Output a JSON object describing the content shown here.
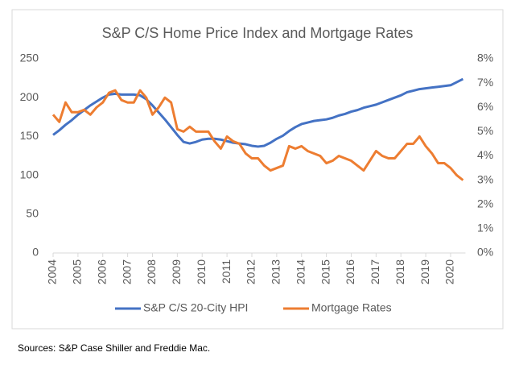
{
  "chart_data": {
    "type": "line",
    "title": "S&P C/S Home Price Index and Mortgage Rates",
    "x": [
      2004,
      2004.25,
      2004.5,
      2004.75,
      2005,
      2005.25,
      2005.5,
      2005.75,
      2006,
      2006.25,
      2006.5,
      2006.75,
      2007,
      2007.25,
      2007.5,
      2007.75,
      2008,
      2008.25,
      2008.5,
      2008.75,
      2009,
      2009.25,
      2009.5,
      2009.75,
      2010,
      2010.25,
      2010.5,
      2010.75,
      2011,
      2011.25,
      2011.5,
      2011.75,
      2012,
      2012.25,
      2012.5,
      2012.75,
      2013,
      2013.25,
      2013.5,
      2013.75,
      2014,
      2014.25,
      2014.5,
      2014.75,
      2015,
      2015.25,
      2015.5,
      2015.75,
      2016,
      2016.25,
      2016.5,
      2016.75,
      2017,
      2017.25,
      2017.5,
      2017.75,
      2018,
      2018.25,
      2018.5,
      2018.75,
      2019,
      2019.25,
      2019.5,
      2019.75,
      2020,
      2020.25,
      2020.5
    ],
    "series": [
      {
        "name": "S&P C/S 20-City HPI",
        "color": "#4472c4",
        "axis": "y",
        "values": [
          152,
          158,
          165,
          171,
          178,
          184,
          190,
          195,
          200,
          204,
          205,
          204,
          204,
          204,
          203,
          198,
          190,
          181,
          172,
          162,
          152,
          143,
          141,
          143,
          146,
          147,
          147,
          146,
          144,
          142,
          141,
          140,
          138,
          137,
          138,
          142,
          147,
          151,
          157,
          162,
          166,
          168,
          170,
          171,
          172,
          174,
          177,
          179,
          182,
          184,
          187,
          189,
          191,
          194,
          197,
          200,
          203,
          207,
          209,
          211,
          212,
          213,
          214,
          215,
          216,
          220,
          224
        ]
      },
      {
        "name": "Mortgage Rates",
        "color": "#ed7d31",
        "axis": "y2",
        "values": [
          5.7,
          5.4,
          6.2,
          5.8,
          5.8,
          5.9,
          5.7,
          6.0,
          6.2,
          6.6,
          6.7,
          6.3,
          6.2,
          6.2,
          6.7,
          6.4,
          5.7,
          6.0,
          6.4,
          6.2,
          5.1,
          5.0,
          5.2,
          5.0,
          5.0,
          5.0,
          4.6,
          4.3,
          4.8,
          4.6,
          4.5,
          4.1,
          3.9,
          3.9,
          3.6,
          3.4,
          3.5,
          3.6,
          4.4,
          4.3,
          4.4,
          4.2,
          4.1,
          4.0,
          3.7,
          3.8,
          4.0,
          3.9,
          3.8,
          3.6,
          3.4,
          3.8,
          4.2,
          4.0,
          3.9,
          3.9,
          4.2,
          4.5,
          4.5,
          4.8,
          4.4,
          4.1,
          3.7,
          3.7,
          3.5,
          3.2,
          3.0
        ]
      }
    ],
    "xlim": [
      2004,
      2020.6
    ],
    "xticks": [
      2004,
      2005,
      2006,
      2007,
      2008,
      2009,
      2010,
      2011,
      2012,
      2013,
      2014,
      2015,
      2016,
      2017,
      2018,
      2019,
      2020
    ],
    "ylim": [
      0,
      250
    ],
    "yticks": [
      0,
      50,
      100,
      150,
      200,
      250
    ],
    "y2lim": [
      0,
      8
    ],
    "y2ticks": [
      {
        "value": 0,
        "label": "0%"
      },
      {
        "value": 1,
        "label": "1%"
      },
      {
        "value": 2,
        "label": "2%"
      },
      {
        "value": 3,
        "label": "3%"
      },
      {
        "value": 4,
        "label": "4%"
      },
      {
        "value": 5,
        "label": "5%"
      },
      {
        "value": 6,
        "label": "6%"
      },
      {
        "value": 7,
        "label": "7%"
      },
      {
        "value": 8,
        "label": "8%"
      }
    ],
    "grid": false,
    "legend": "bottom"
  },
  "note": "Sources: S&P Case Shiller and Freddie Mac."
}
